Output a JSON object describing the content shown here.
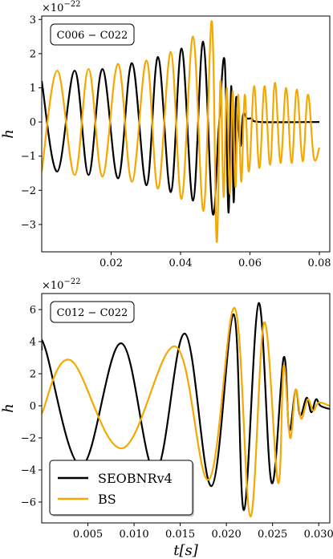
{
  "colors": {
    "seobnr": "#000000",
    "bs": "#f5a800"
  },
  "chart_data": [
    {
      "type": "line",
      "annotation": "C006 − C022",
      "ylabel": "h",
      "xlabel": "",
      "offset_text": "×10",
      "offset_exp": "−22",
      "xlim": [
        0.0,
        0.083
      ],
      "ylim": [
        -3.8,
        3.1
      ],
      "xticks": [
        0.02,
        0.04,
        0.06,
        0.08
      ],
      "xtick_labels": [
        "0.02",
        "0.04",
        "0.06",
        "0.08"
      ],
      "yticks": [
        -3,
        -2,
        -1,
        0,
        1,
        2,
        3
      ],
      "ytick_labels": [
        "−3",
        "−2",
        "−1",
        "0",
        "1",
        "2",
        "3"
      ],
      "series": [
        {
          "key": "seobnr",
          "x": [
            0.0,
            0.0045,
            0.0095,
            0.0135,
            0.0175,
            0.022,
            0.026,
            0.0302,
            0.0335,
            0.0372,
            0.0403,
            0.0436,
            0.0465,
            0.0492,
            0.051,
            0.0527,
            0.0538,
            0.0546,
            0.0553,
            0.056,
            0.0572,
            0.058,
            0.0592,
            0.0605,
            0.063,
            0.08
          ],
          "y": [
            1.2,
            -1.45,
            1.5,
            -1.55,
            1.55,
            -1.65,
            1.72,
            -1.85,
            1.9,
            -2.05,
            2.15,
            -2.3,
            2.35,
            -2.65,
            -0.2,
            1.8,
            -2.65,
            1.05,
            -2.35,
            0.7,
            -0.7,
            0.2,
            0.1,
            0.1,
            0.0,
            0.0
          ]
        },
        {
          "key": "bs",
          "x": [
            0.0,
            0.0045,
            0.0095,
            0.0135,
            0.0175,
            0.022,
            0.026,
            0.0302,
            0.0335,
            0.0372,
            0.0403,
            0.0436,
            0.0466,
            0.049,
            0.0504,
            0.0515,
            0.0524,
            0.0533,
            0.0542,
            0.055,
            0.0558,
            0.0566,
            0.0575,
            0.0585,
            0.0597,
            0.0612,
            0.0627,
            0.0642,
            0.0658,
            0.0672,
            0.0688,
            0.0704,
            0.072,
            0.0735,
            0.0752,
            0.0767,
            0.0784,
            0.08
          ],
          "y": [
            -1.45,
            1.5,
            -1.55,
            1.55,
            -1.6,
            1.7,
            -1.75,
            1.8,
            -1.95,
            2.05,
            -2.25,
            2.5,
            -2.6,
            2.95,
            -3.5,
            1.2,
            -2.2,
            1.0,
            -2.1,
            0.9,
            -1.9,
            0.8,
            -1.75,
            0.8,
            -1.45,
            1.05,
            -1.35,
            1.05,
            -1.25,
            1.15,
            -1.2,
            1.0,
            -1.2,
            0.95,
            -1.15,
            0.8,
            -1.05,
            -0.75
          ]
        }
      ]
    },
    {
      "type": "line",
      "annotation": "C012 − C022",
      "ylabel": "h",
      "xlabel": "t[s]",
      "offset_text": "×10",
      "offset_exp": "−22",
      "xlim": [
        0.0,
        0.0312
      ],
      "ylim": [
        -7.3,
        7.0
      ],
      "xticks": [
        0.005,
        0.01,
        0.015,
        0.02,
        0.025,
        0.03
      ],
      "xtick_labels": [
        "0.005",
        "0.010",
        "0.015",
        "0.020",
        "0.025",
        "0.030"
      ],
      "yticks": [
        -6,
        -4,
        -2,
        0,
        2,
        4,
        6
      ],
      "ytick_labels": [
        "−6",
        "−4",
        "−2",
        "0",
        "2",
        "4",
        "6"
      ],
      "legend": {
        "position": "lower-left",
        "entries": [
          "SEOBNRv4",
          "BS"
        ]
      },
      "series": [
        {
          "key": "seobnr",
          "label": "SEOBNRv4",
          "x": [
            0.0,
            0.0004,
            0.0043,
            0.0086,
            0.0123,
            0.0155,
            0.0184,
            0.0208,
            0.0219,
            0.0235,
            0.0249,
            0.0262,
            0.0268,
            0.0275,
            0.028,
            0.0287,
            0.0292,
            0.0297,
            0.0302,
            0.0312
          ],
          "y": [
            3.5,
            3.55,
            -3.75,
            3.9,
            -4.1,
            4.5,
            -5.0,
            5.7,
            -6.5,
            6.4,
            -4.8,
            3.0,
            -1.5,
            1.0,
            -0.6,
            0.5,
            -0.4,
            0.4,
            0.0,
            -0.2
          ]
        },
        {
          "key": "bs",
          "label": "BS",
          "x": [
            0.0,
            0.0031,
            0.0087,
            0.0145,
            0.0181,
            0.0209,
            0.0226,
            0.0241,
            0.0256,
            0.0262,
            0.0269,
            0.0275,
            0.0281,
            0.0288,
            0.0294,
            0.03,
            0.0312
          ],
          "y": [
            -0.5,
            2.85,
            -2.65,
            3.7,
            -4.6,
            6.1,
            -6.9,
            5.2,
            -4.8,
            2.5,
            -2.0,
            1.0,
            -0.8,
            0.4,
            -0.3,
            0.2,
            0.0
          ]
        }
      ]
    }
  ]
}
